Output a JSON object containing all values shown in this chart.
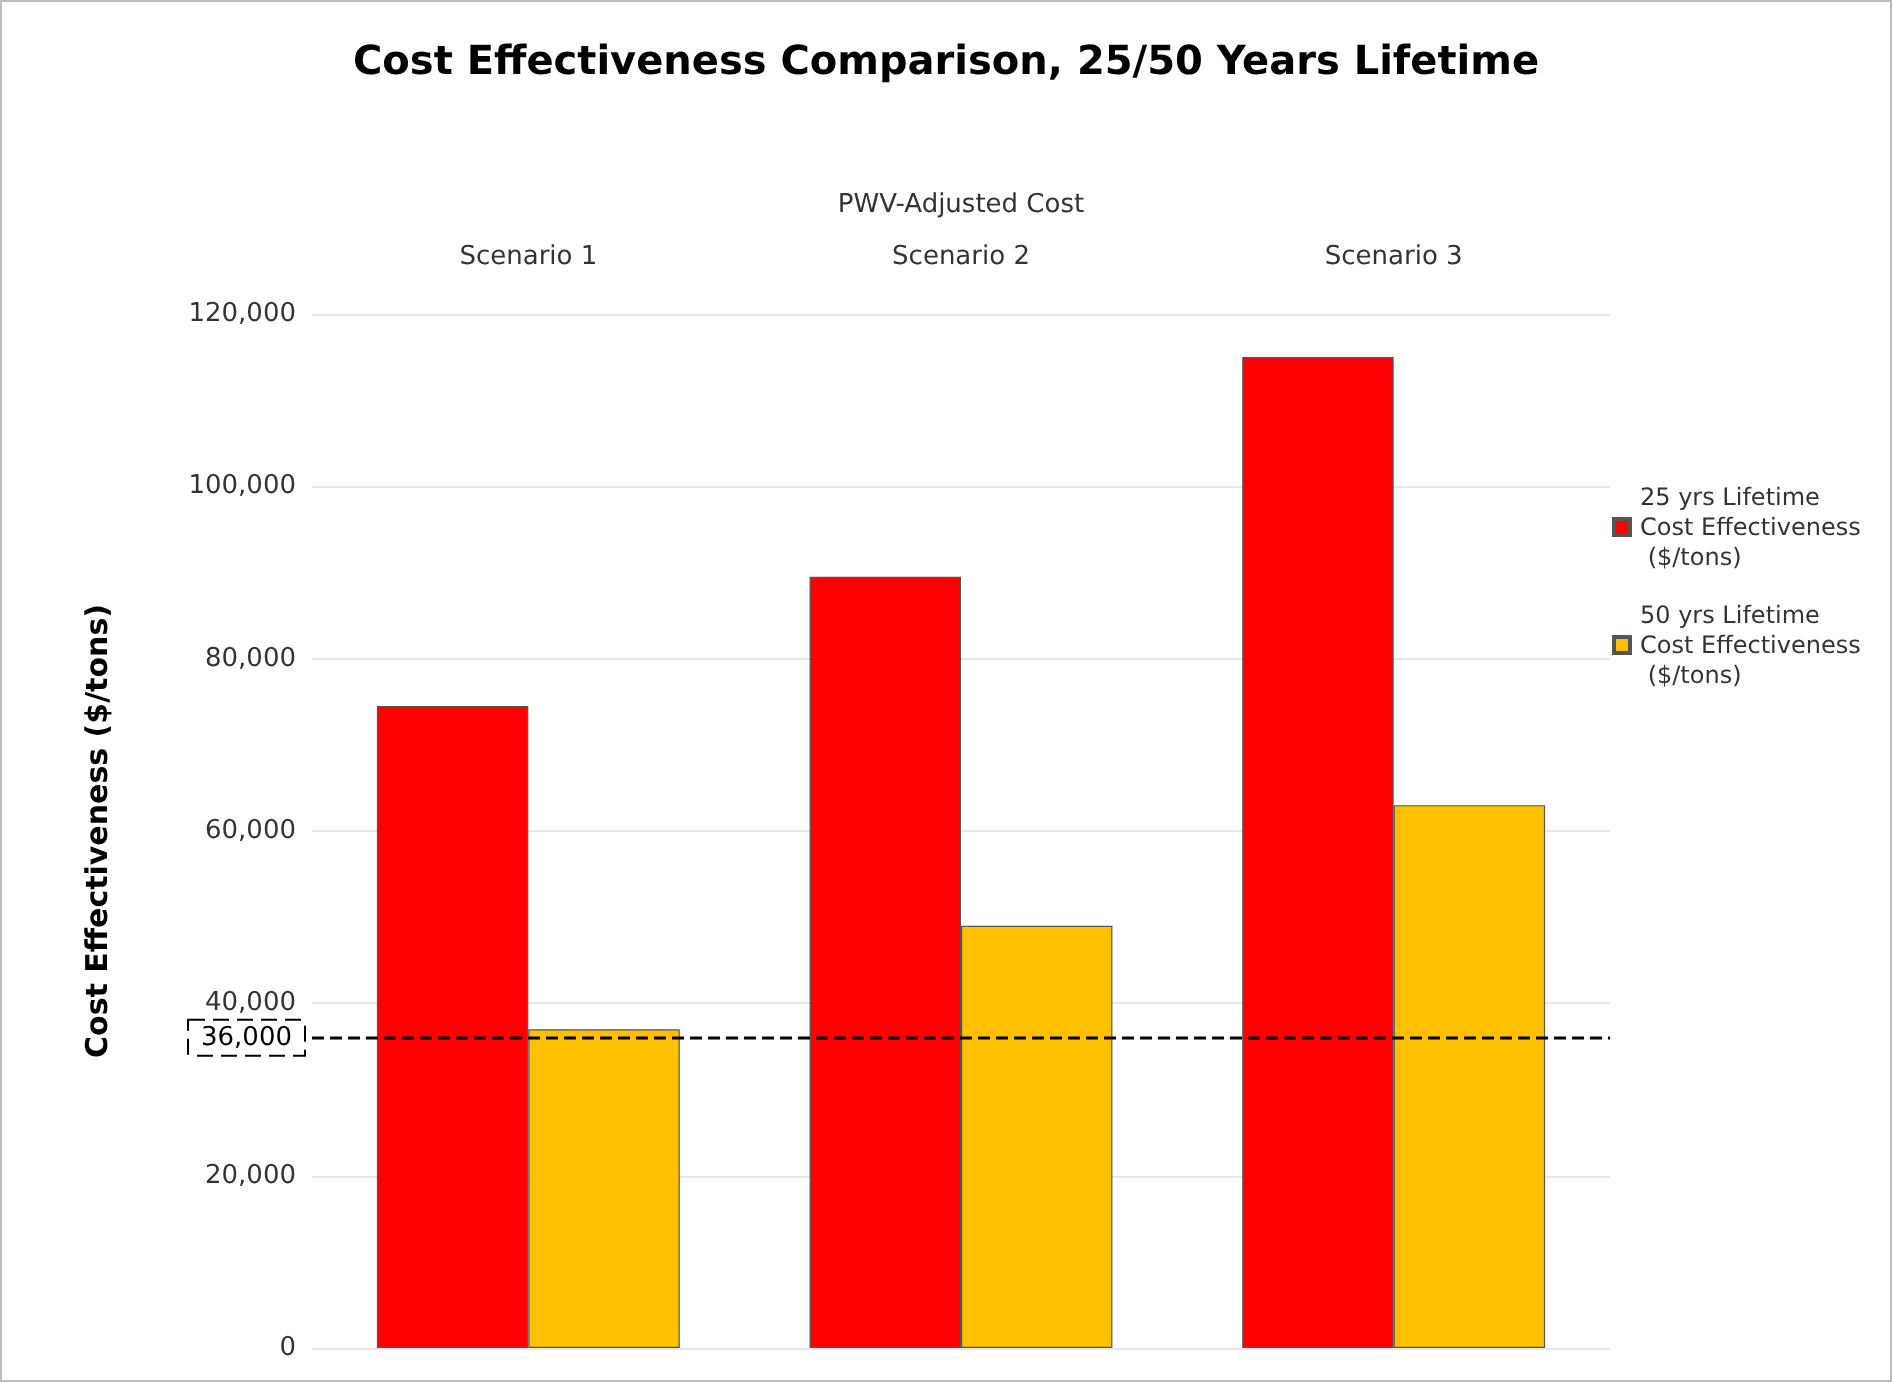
{
  "chart_data": {
    "type": "bar",
    "title": "Cost Effectiveness Comparison, 25/50 Years Lifetime",
    "xlabel": "PWV-Adjusted Cost",
    "ylabel": "Cost Effectiveness ($/tons)",
    "categories": [
      "Scenario 1",
      "Scenario 2",
      "Scenario 3"
    ],
    "series": [
      {
        "name": "25 yrs Lifetime Cost Effectiveness ($/tons)",
        "color": "#ff0000",
        "values": [
          74500,
          89500,
          115000
        ]
      },
      {
        "name": "50 yrs Lifetime Cost Effectiveness ($/tons)",
        "color": "#ffc000",
        "values": [
          37000,
          49000,
          63000
        ]
      }
    ],
    "ylim": [
      0,
      120000
    ],
    "yticks": [
      0,
      {
        "value": 20000,
        "label": "20,000"
      },
      {
        "value": 40000,
        "label": "40,000"
      },
      {
        "value": 60000,
        "label": "60,000"
      },
      {
        "value": 80000,
        "label": "80,000"
      },
      {
        "value": 100000,
        "label": "100,000"
      },
      {
        "value": 120000,
        "label": "120,000"
      }
    ],
    "grid": "y",
    "legend": "right",
    "ref_lines": [
      {
        "axis": "y",
        "value": 36000,
        "label": "36,000",
        "color": "#000000",
        "line_style": "dashed"
      }
    ]
  }
}
